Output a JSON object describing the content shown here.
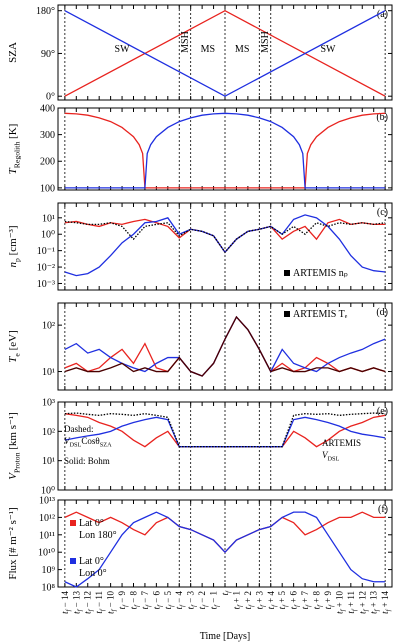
{
  "chart_data": [
    {
      "type": "line",
      "panel_label": "(a)",
      "ylabel": [
        "SZA"
      ],
      "xlim": [
        -14.6,
        14.6
      ],
      "ylim": [
        -8,
        192
      ],
      "yticks": [
        {
          "value": 0,
          "label": "0°"
        },
        {
          "value": 90,
          "label": "90°"
        },
        {
          "value": 180,
          "label": "180°"
        }
      ],
      "boundaries": [
        -14,
        -4,
        -3,
        0,
        3,
        4,
        14
      ],
      "regions": [
        "SW",
        "MSH",
        "MS",
        "MS",
        "MSH",
        "SW"
      ],
      "x": [
        -14,
        0,
        14
      ],
      "series": [
        {
          "color": "#e8231f",
          "values": [
            0,
            180,
            0
          ]
        },
        {
          "color": "#1f2fe0",
          "values": [
            180,
            0,
            180
          ]
        }
      ]
    },
    {
      "type": "line",
      "panel_label": "(b)",
      "ylabel": [
        "T",
        "Regolith",
        " [K]"
      ],
      "xlim": [
        -14.6,
        14.6
      ],
      "ylim": [
        92,
        400
      ],
      "yticks": [
        100,
        200,
        300,
        400
      ],
      "x": [
        -14,
        -13,
        -12,
        -11,
        -10,
        -9,
        -8,
        -7.5,
        -7.2,
        -7,
        -6.8,
        -6.5,
        -6,
        -5,
        -4,
        -3,
        -2,
        -1,
        0,
        1,
        2,
        3,
        4,
        5,
        6,
        6.5,
        6.8,
        7,
        7.2,
        7.5,
        8,
        9,
        10,
        11,
        12,
        13,
        14
      ],
      "series": [
        {
          "color": "#e8231f",
          "values": [
            380,
            378,
            373,
            363,
            349,
            327,
            292,
            262,
            229,
            100,
            100,
            100,
            100,
            100,
            100,
            100,
            100,
            100,
            100,
            100,
            100,
            100,
            100,
            100,
            100,
            100,
            100,
            100,
            229,
            262,
            292,
            327,
            349,
            363,
            373,
            378,
            380
          ]
        },
        {
          "color": "#1f2fe0",
          "values": [
            100,
            100,
            100,
            100,
            100,
            100,
            100,
            100,
            100,
            100,
            229,
            262,
            292,
            327,
            349,
            363,
            373,
            378,
            380,
            378,
            373,
            363,
            349,
            327,
            292,
            262,
            229,
            100,
            100,
            100,
            100,
            100,
            100,
            100,
            100,
            100,
            100
          ]
        }
      ]
    },
    {
      "type": "line",
      "log": true,
      "panel_label": "(c)",
      "ylabel": [
        "n",
        "p",
        " [cm⁻³]"
      ],
      "xlim": [
        -14.6,
        14.6
      ],
      "ylim": [
        0.0004,
        80
      ],
      "yticks": [
        {
          "value": 0.001,
          "label": "10⁻³"
        },
        {
          "value": 0.01,
          "label": "10⁻²"
        },
        {
          "value": 0.1,
          "label": "10⁻¹"
        },
        {
          "value": 1,
          "label": "10⁰"
        },
        {
          "value": 10,
          "label": "10¹"
        }
      ],
      "x": [
        -14,
        -13,
        -12,
        -11,
        -10,
        -9,
        -8,
        -7,
        -6,
        -5,
        -4,
        -3,
        -2,
        -1,
        0,
        1,
        2,
        3,
        4,
        5,
        6,
        7,
        8,
        9,
        10,
        11,
        12,
        13,
        14
      ],
      "series": [
        {
          "color": "#e8231f",
          "values": [
            5,
            6,
            4,
            3,
            5,
            4,
            6,
            8,
            5,
            3,
            0.6,
            2,
            1.5,
            0.8,
            0.08,
            0.5,
            1.5,
            2,
            3,
            0.5,
            1.5,
            3,
            0.5,
            5,
            8,
            4,
            5,
            4,
            4
          ]
        },
        {
          "color": "#1f2fe0",
          "values": [
            0.005,
            0.003,
            0.004,
            0.01,
            0.05,
            0.3,
            1,
            5,
            6,
            10,
            1,
            2,
            1.5,
            0.8,
            0.08,
            0.5,
            1.5,
            2,
            3,
            1,
            8,
            15,
            10,
            3,
            0.5,
            0.05,
            0.01,
            0.006,
            0.005
          ]
        },
        {
          "name": "ARTEMIS nₚ",
          "color": "#000000",
          "dash": true,
          "values": [
            6,
            5,
            4,
            4,
            5,
            3,
            0.5,
            3,
            4,
            5,
            0.8,
            2,
            1.5,
            0.8,
            0.08,
            0.5,
            1.5,
            2,
            3,
            1,
            3,
            1,
            5,
            3,
            5,
            4,
            5,
            4,
            5
          ]
        }
      ]
    },
    {
      "type": "line",
      "log": true,
      "panel_label": "(d)",
      "ylabel": [
        "T",
        "e",
        " [eV]"
      ],
      "xlim": [
        -14.6,
        14.6
      ],
      "ylim": [
        4,
        300
      ],
      "yticks": [
        {
          "value": 10,
          "label": "10¹"
        },
        {
          "value": 100,
          "label": "10²"
        }
      ],
      "x": [
        -14,
        -13,
        -12,
        -11,
        -10,
        -9,
        -8,
        -7,
        -6,
        -5,
        -4,
        -3,
        -2,
        -1,
        0,
        1,
        2,
        3,
        4,
        5,
        6,
        7,
        8,
        9,
        10,
        11,
        12,
        13,
        14
      ],
      "series": [
        {
          "color": "#e8231f",
          "values": [
            12,
            15,
            10,
            12,
            20,
            30,
            15,
            40,
            12,
            10,
            20,
            10,
            8,
            15,
            50,
            150,
            80,
            30,
            10,
            15,
            10,
            12,
            20,
            15,
            10,
            12,
            10,
            12,
            10
          ]
        },
        {
          "color": "#1f2fe0",
          "values": [
            30,
            40,
            25,
            30,
            20,
            15,
            12,
            10,
            15,
            20,
            20,
            10,
            8,
            15,
            50,
            150,
            80,
            30,
            10,
            30,
            15,
            12,
            10,
            15,
            20,
            25,
            30,
            40,
            50
          ]
        },
        {
          "name": "ARTEMIS Tₑ",
          "color": "#4a0000",
          "values": [
            10,
            12,
            10,
            10,
            12,
            15,
            10,
            12,
            10,
            10,
            20,
            10,
            8,
            15,
            50,
            150,
            80,
            30,
            10,
            12,
            10,
            10,
            12,
            12,
            10,
            12,
            10,
            12,
            10
          ]
        }
      ]
    },
    {
      "type": "line",
      "log": true,
      "panel_label": "(e)",
      "ylabel": [
        "V",
        "Proton",
        " [km s⁻¹]"
      ],
      "xlim": [
        -14.6,
        14.6
      ],
      "ylim": [
        1,
        1000
      ],
      "yticks": [
        {
          "value": 1,
          "label": "10⁰"
        },
        {
          "value": 10,
          "label": "10¹"
        },
        {
          "value": 100,
          "label": "10²"
        },
        {
          "value": 1000,
          "label": "10³"
        }
      ],
      "annotations": [
        [
          "Dashed:"
        ],
        [
          "V",
          "DSL",
          "Cosθ",
          "SZA"
        ],
        [
          "Solid: Bohm"
        ],
        [
          "ARTEMIS"
        ],
        [
          "V",
          "DSL"
        ]
      ],
      "x": [
        -14,
        -13,
        -12,
        -11,
        -10,
        -9,
        -8,
        -7,
        -6,
        -5,
        -4,
        -3,
        -2,
        -1,
        0,
        1,
        2,
        3,
        4,
        5,
        6,
        7,
        8,
        9,
        10,
        11,
        12,
        13,
        14
      ],
      "series": [
        {
          "color": "#e8231f",
          "values": [
            400,
            350,
            300,
            200,
            150,
            100,
            50,
            30,
            60,
            100,
            30,
            30,
            30,
            30,
            30,
            30,
            30,
            30,
            30,
            30,
            100,
            60,
            30,
            50,
            100,
            150,
            200,
            300,
            350
          ]
        },
        {
          "color": "#1f2fe0",
          "values": [
            50,
            60,
            70,
            80,
            100,
            150,
            200,
            250,
            300,
            250,
            30,
            30,
            30,
            30,
            30,
            30,
            30,
            30,
            30,
            30,
            250,
            300,
            250,
            200,
            150,
            100,
            80,
            70,
            60
          ]
        },
        {
          "color": "#000000",
          "dash": true,
          "values": [
            400,
            420,
            380,
            350,
            400,
            380,
            350,
            400,
            350,
            300,
            30,
            30,
            30,
            30,
            30,
            30,
            30,
            30,
            30,
            30,
            350,
            400,
            380,
            400,
            350,
            380,
            400,
            420,
            400
          ]
        }
      ]
    },
    {
      "type": "line",
      "log": true,
      "panel_label": "(f)",
      "ylabel": [
        "Flux [# m⁻² s⁻¹]"
      ],
      "xlabel": "Time [Days]",
      "xlim": [
        -14.6,
        14.6
      ],
      "ylim": [
        100000000,
        10000000000000
      ],
      "yticks": [
        {
          "value": 100000000,
          "label": "10⁸"
        },
        {
          "value": 1000000000,
          "label": "10⁹"
        },
        {
          "value": 10000000000,
          "label": "10¹⁰"
        },
        {
          "value": 100000000000,
          "label": "10¹¹"
        },
        {
          "value": 1000000000000,
          "label": "10¹²"
        },
        {
          "value": 10000000000000,
          "label": "10¹³"
        }
      ],
      "xticks": [
        {
          "value": -14,
          "label": "tf − 14"
        },
        {
          "value": -13,
          "label": "tf − 13"
        },
        {
          "value": -12,
          "label": "tf − 12"
        },
        {
          "value": -11,
          "label": "tf − 11"
        },
        {
          "value": -10,
          "label": "tf − 10"
        },
        {
          "value": -9,
          "label": "tf − 9"
        },
        {
          "value": -8,
          "label": "tf − 8"
        },
        {
          "value": -7,
          "label": "tf − 7"
        },
        {
          "value": -6,
          "label": "tf − 6"
        },
        {
          "value": -5,
          "label": "tf − 5"
        },
        {
          "value": -4,
          "label": "tf − 4"
        },
        {
          "value": -3,
          "label": "tf − 3"
        },
        {
          "value": -2,
          "label": "tf − 2"
        },
        {
          "value": -1,
          "label": "tf − 1"
        },
        {
          "value": 0,
          "label": "tf"
        },
        {
          "value": 1,
          "label": "tf + 1"
        },
        {
          "value": 2,
          "label": "tf + 2"
        },
        {
          "value": 3,
          "label": "tf + 3"
        },
        {
          "value": 4,
          "label": "tf + 4"
        },
        {
          "value": 5,
          "label": "tf + 5"
        },
        {
          "value": 6,
          "label": "tf + 6"
        },
        {
          "value": 7,
          "label": "tf + 7"
        },
        {
          "value": 8,
          "label": "tf + 8"
        },
        {
          "value": 9,
          "label": "tf + 9"
        },
        {
          "value": 10,
          "label": "tf + 10"
        },
        {
          "value": 11,
          "label": "tf + 11"
        },
        {
          "value": 12,
          "label": "tf + 12"
        },
        {
          "value": 13,
          "label": "tf + 13"
        },
        {
          "value": 14,
          "label": "tf + 14"
        }
      ],
      "x": [
        -14,
        -13,
        -12,
        -11,
        -10,
        -9,
        -8,
        -7,
        -6,
        -5,
        -4,
        -3,
        -2,
        -1,
        0,
        1,
        2,
        3,
        4,
        5,
        6,
        7,
        8,
        9,
        10,
        11,
        12,
        13,
        14
      ],
      "series": [
        {
          "name": "Lat 0°",
          "location": "Lon 180°",
          "color": "#e8231f",
          "values": [
            1000000000000,
            2000000000000,
            1000000000000,
            500000000000,
            1000000000000,
            500000000000,
            200000000000,
            100000000000,
            500000000000,
            1000000000000,
            300000000000,
            200000000000,
            100000000000,
            50000000000,
            10000000000,
            50000000000,
            100000000000,
            200000000000,
            300000000000,
            1000000000000,
            500000000000,
            100000000000,
            200000000000,
            500000000000,
            1000000000000,
            1000000000000,
            2000000000000,
            1000000000000,
            1000000000000
          ]
        },
        {
          "name": "Lat 0°",
          "location": "Lon 0°",
          "color": "#1f2fe0",
          "values": [
            200000000,
            100000000,
            300000000,
            1000000000,
            10000000000,
            100000000000,
            500000000000,
            1000000000000,
            2000000000000,
            1000000000000,
            300000000000,
            200000000000,
            100000000000,
            50000000000,
            10000000000,
            50000000000,
            100000000000,
            200000000000,
            300000000000,
            1000000000000,
            2000000000000,
            2000000000000,
            1000000000000,
            100000000000,
            10000000000,
            1000000000,
            300000000,
            200000000,
            200000000
          ]
        }
      ]
    }
  ]
}
